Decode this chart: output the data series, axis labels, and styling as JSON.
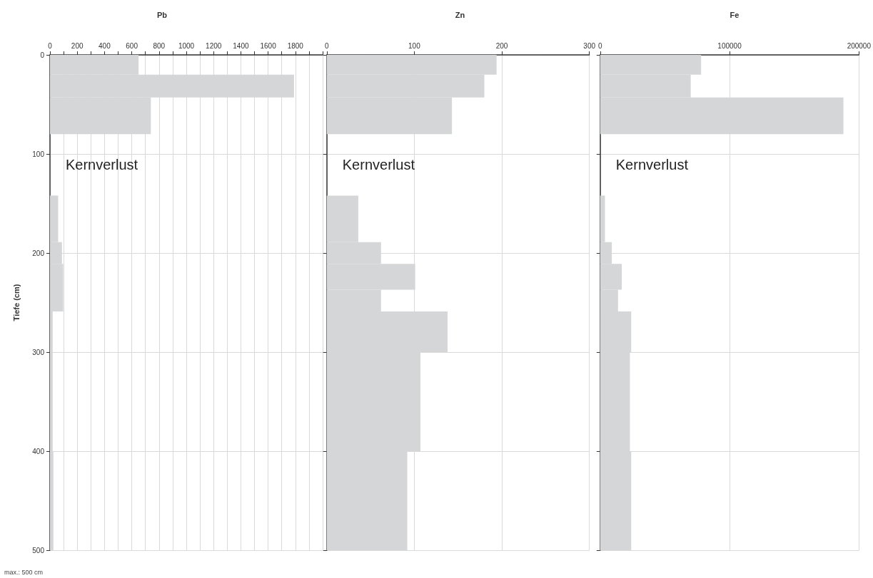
{
  "chart_data": [
    {
      "type": "histogram",
      "orientation": "horizontal",
      "title": "Pb",
      "ylabel": "Tiefe (cm)",
      "color": "#d4d6d8",
      "bins": [
        0,
        20,
        43,
        80,
        142,
        189,
        211,
        259,
        400,
        500
      ],
      "values": [
        650,
        1790,
        740,
        null,
        60,
        88,
        97,
        20,
        25
      ],
      "xlim": [
        0,
        2000
      ],
      "xticks": [
        0,
        {
          "value": 100,
          "label": null
        },
        200,
        {
          "value": 300,
          "label": null
        },
        400,
        {
          "value": 500,
          "label": null
        },
        600,
        {
          "value": 700,
          "label": null
        },
        800,
        {
          "value": 900,
          "label": null
        },
        1000,
        {
          "value": 1100,
          "label": null
        },
        1200,
        {
          "value": 1300,
          "label": null
        },
        1400,
        {
          "value": 1500,
          "label": null
        },
        1600,
        {
          "value": 1700,
          "label": null
        },
        1800,
        {
          "value": 1900,
          "label": null
        },
        {
          "value": 2000,
          "label": null
        }
      ],
      "ylim": [
        500,
        0
      ],
      "yticks": [
        0,
        100,
        200,
        300,
        400,
        500
      ],
      "grid": true,
      "annotations": [
        "Kernverlust",
        "max.: 500 cm"
      ]
    },
    {
      "type": "histogram",
      "orientation": "horizontal",
      "title": "Zn",
      "color": "#d4d6d8",
      "bins": [
        0,
        20,
        43,
        80,
        142,
        189,
        211,
        237,
        259,
        300,
        400,
        500
      ],
      "values": [
        194,
        180,
        143,
        null,
        36,
        62,
        101,
        62,
        138,
        107,
        92
      ],
      "xlim": [
        0,
        300
      ],
      "xticks": [
        0,
        100,
        200,
        300
      ],
      "ylim": [
        500,
        0
      ],
      "yticks": [
        0,
        100,
        200,
        300,
        400,
        500
      ],
      "grid": true,
      "tick_labels": "x",
      "annotations": [
        "Kernverlust"
      ]
    },
    {
      "type": "histogram",
      "orientation": "horizontal",
      "title": "Fe",
      "color": "#d4d6d8",
      "bins": [
        0,
        20,
        43,
        80,
        142,
        189,
        211,
        237,
        259,
        300,
        400,
        500
      ],
      "values": [
        78000,
        70000,
        188000,
        null,
        3700,
        9000,
        16700,
        13800,
        24000,
        23000,
        24000
      ],
      "xlim": [
        0,
        200000
      ],
      "xticks": [
        0,
        100000,
        200000
      ],
      "ylim": [
        500,
        0
      ],
      "yticks": [
        0,
        100,
        200,
        300,
        400,
        500
      ],
      "grid": true,
      "tick_labels": "x",
      "annotations": [
        "Kernverlust"
      ]
    }
  ]
}
